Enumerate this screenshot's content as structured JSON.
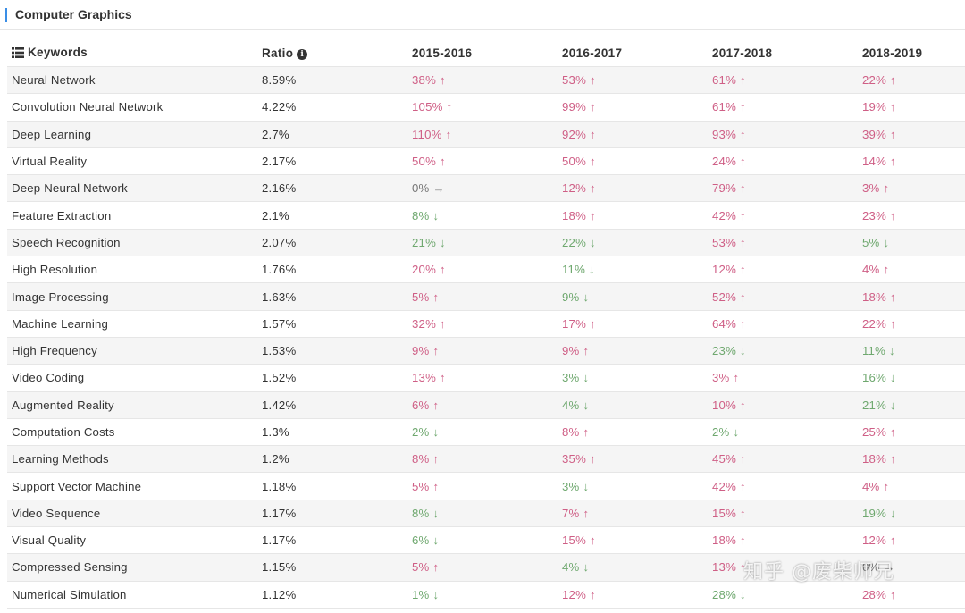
{
  "panel": {
    "title": "Computer Graphics"
  },
  "table": {
    "headers": {
      "keywords": "Keywords",
      "ratio": "Ratio",
      "y1": "2015-2016",
      "y2": "2016-2017",
      "y3": "2017-2018",
      "y4": "2018-2019"
    },
    "rows": [
      {
        "keyword": "Neural Network",
        "ratio": "8.59%",
        "changes": [
          {
            "value": "38%",
            "trend": "up"
          },
          {
            "value": "53%",
            "trend": "up"
          },
          {
            "value": "61%",
            "trend": "up"
          },
          {
            "value": "22%",
            "trend": "up"
          }
        ]
      },
      {
        "keyword": "Convolution Neural Network",
        "ratio": "4.22%",
        "changes": [
          {
            "value": "105%",
            "trend": "up"
          },
          {
            "value": "99%",
            "trend": "up"
          },
          {
            "value": "61%",
            "trend": "up"
          },
          {
            "value": "19%",
            "trend": "up"
          }
        ]
      },
      {
        "keyword": "Deep Learning",
        "ratio": "2.7%",
        "changes": [
          {
            "value": "110%",
            "trend": "up"
          },
          {
            "value": "92%",
            "trend": "up"
          },
          {
            "value": "93%",
            "trend": "up"
          },
          {
            "value": "39%",
            "trend": "up"
          }
        ]
      },
      {
        "keyword": "Virtual Reality",
        "ratio": "2.17%",
        "changes": [
          {
            "value": "50%",
            "trend": "up"
          },
          {
            "value": "50%",
            "trend": "up"
          },
          {
            "value": "24%",
            "trend": "up"
          },
          {
            "value": "14%",
            "trend": "up"
          }
        ]
      },
      {
        "keyword": "Deep Neural Network",
        "ratio": "2.16%",
        "changes": [
          {
            "value": "0%",
            "trend": "flat"
          },
          {
            "value": "12%",
            "trend": "up"
          },
          {
            "value": "79%",
            "trend": "up"
          },
          {
            "value": "3%",
            "trend": "up"
          }
        ]
      },
      {
        "keyword": "Feature Extraction",
        "ratio": "2.1%",
        "changes": [
          {
            "value": "8%",
            "trend": "down"
          },
          {
            "value": "18%",
            "trend": "up"
          },
          {
            "value": "42%",
            "trend": "up"
          },
          {
            "value": "23%",
            "trend": "up"
          }
        ]
      },
      {
        "keyword": "Speech Recognition",
        "ratio": "2.07%",
        "changes": [
          {
            "value": "21%",
            "trend": "down"
          },
          {
            "value": "22%",
            "trend": "down"
          },
          {
            "value": "53%",
            "trend": "up"
          },
          {
            "value": "5%",
            "trend": "down"
          }
        ]
      },
      {
        "keyword": "High Resolution",
        "ratio": "1.76%",
        "changes": [
          {
            "value": "20%",
            "trend": "up"
          },
          {
            "value": "11%",
            "trend": "down"
          },
          {
            "value": "12%",
            "trend": "up"
          },
          {
            "value": "4%",
            "trend": "up"
          }
        ]
      },
      {
        "keyword": "Image Processing",
        "ratio": "1.63%",
        "changes": [
          {
            "value": "5%",
            "trend": "up"
          },
          {
            "value": "9%",
            "trend": "down"
          },
          {
            "value": "52%",
            "trend": "up"
          },
          {
            "value": "18%",
            "trend": "up"
          }
        ]
      },
      {
        "keyword": "Machine Learning",
        "ratio": "1.57%",
        "changes": [
          {
            "value": "32%",
            "trend": "up"
          },
          {
            "value": "17%",
            "trend": "up"
          },
          {
            "value": "64%",
            "trend": "up"
          },
          {
            "value": "22%",
            "trend": "up"
          }
        ]
      },
      {
        "keyword": "High Frequency",
        "ratio": "1.53%",
        "changes": [
          {
            "value": "9%",
            "trend": "up"
          },
          {
            "value": "9%",
            "trend": "up"
          },
          {
            "value": "23%",
            "trend": "down"
          },
          {
            "value": "11%",
            "trend": "down"
          }
        ]
      },
      {
        "keyword": "Video Coding",
        "ratio": "1.52%",
        "changes": [
          {
            "value": "13%",
            "trend": "up"
          },
          {
            "value": "3%",
            "trend": "down"
          },
          {
            "value": "3%",
            "trend": "up"
          },
          {
            "value": "16%",
            "trend": "down"
          }
        ]
      },
      {
        "keyword": "Augmented Reality",
        "ratio": "1.42%",
        "changes": [
          {
            "value": "6%",
            "trend": "up"
          },
          {
            "value": "4%",
            "trend": "down"
          },
          {
            "value": "10%",
            "trend": "up"
          },
          {
            "value": "21%",
            "trend": "down"
          }
        ]
      },
      {
        "keyword": "Computation Costs",
        "ratio": "1.3%",
        "changes": [
          {
            "value": "2%",
            "trend": "down"
          },
          {
            "value": "8%",
            "trend": "up"
          },
          {
            "value": "2%",
            "trend": "down"
          },
          {
            "value": "25%",
            "trend": "up"
          }
        ]
      },
      {
        "keyword": "Learning Methods",
        "ratio": "1.2%",
        "changes": [
          {
            "value": "8%",
            "trend": "up"
          },
          {
            "value": "35%",
            "trend": "up"
          },
          {
            "value": "45%",
            "trend": "up"
          },
          {
            "value": "18%",
            "trend": "up"
          }
        ]
      },
      {
        "keyword": "Support Vector Machine",
        "ratio": "1.18%",
        "changes": [
          {
            "value": "5%",
            "trend": "up"
          },
          {
            "value": "3%",
            "trend": "down"
          },
          {
            "value": "42%",
            "trend": "up"
          },
          {
            "value": "4%",
            "trend": "up"
          }
        ]
      },
      {
        "keyword": "Video Sequence",
        "ratio": "1.17%",
        "changes": [
          {
            "value": "8%",
            "trend": "down"
          },
          {
            "value": "7%",
            "trend": "up"
          },
          {
            "value": "15%",
            "trend": "up"
          },
          {
            "value": "19%",
            "trend": "down"
          }
        ]
      },
      {
        "keyword": "Visual Quality",
        "ratio": "1.17%",
        "changes": [
          {
            "value": "6%",
            "trend": "down"
          },
          {
            "value": "15%",
            "trend": "up"
          },
          {
            "value": "18%",
            "trend": "up"
          },
          {
            "value": "12%",
            "trend": "up"
          }
        ]
      },
      {
        "keyword": "Compressed Sensing",
        "ratio": "1.15%",
        "changes": [
          {
            "value": "5%",
            "trend": "up"
          },
          {
            "value": "4%",
            "trend": "down"
          },
          {
            "value": "13%",
            "trend": "up"
          },
          {
            "value": "0%",
            "trend": "flat"
          }
        ]
      },
      {
        "keyword": "Numerical Simulation",
        "ratio": "1.12%",
        "changes": [
          {
            "value": "1%",
            "trend": "down"
          },
          {
            "value": "12%",
            "trend": "up"
          },
          {
            "value": "28%",
            "trend": "down"
          },
          {
            "value": "28%",
            "trend": "up"
          }
        ]
      }
    ]
  },
  "watermark": "知乎 @废柴师兄",
  "colors": {
    "up": "#cf5f86",
    "down": "#6fa86f",
    "flat": "#777777",
    "accent": "#3a8ee6",
    "stripe": "#f5f5f5"
  },
  "icons": {
    "header_keywords": "list-icon",
    "header_ratio": "info-icon",
    "up": "arrow-up-icon",
    "down": "arrow-down-icon",
    "flat": "arrow-right-icon"
  }
}
